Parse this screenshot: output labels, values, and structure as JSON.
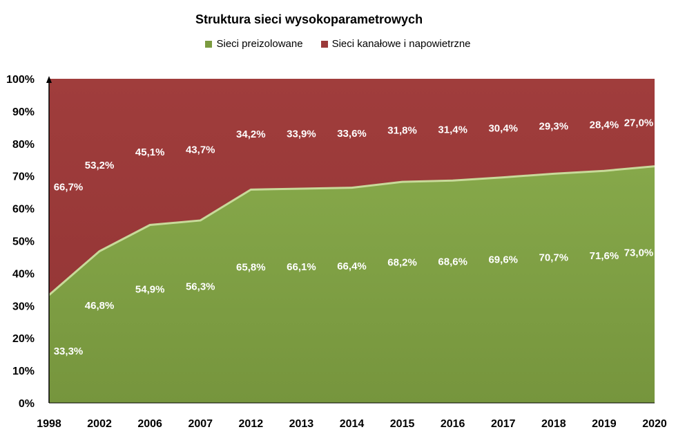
{
  "chart_data": {
    "type": "area",
    "stacked": "percent",
    "title": "Struktura sieci wysokoparametrowych",
    "categories": [
      "1998",
      "2002",
      "2006",
      "2007",
      "2012",
      "2013",
      "2014",
      "2015",
      "2016",
      "2017",
      "2018",
      "2019",
      "2020"
    ],
    "series": [
      {
        "name": "Sieci preizolowane",
        "color": "#7b9b40",
        "values": [
          33.3,
          46.8,
          54.9,
          56.3,
          65.8,
          66.1,
          66.4,
          68.2,
          68.6,
          69.6,
          70.7,
          71.6,
          73.0
        ],
        "labels": [
          "33,3%",
          "46,8%",
          "54,9%",
          "56,3%",
          "65,8%",
          "66,1%",
          "66,4%",
          "68,2%",
          "68,6%",
          "69,6%",
          "70,7%",
          "71,6%",
          "73,0%"
        ]
      },
      {
        "name": "Sieci kanałowe i napowietrzne",
        "color": "#9b3a3a",
        "values": [
          66.7,
          53.2,
          45.1,
          43.7,
          34.2,
          33.9,
          33.6,
          31.8,
          31.4,
          30.4,
          29.3,
          28.4,
          27.0
        ],
        "labels": [
          "66,7%",
          "53,2%",
          "45,1%",
          "43,7%",
          "34,2%",
          "33,9%",
          "33,6%",
          "31,8%",
          "31,4%",
          "30,4%",
          "29,3%",
          "28,4%",
          "27,0%"
        ]
      }
    ],
    "y_ticks": [
      "0%",
      "10%",
      "20%",
      "30%",
      "40%",
      "50%",
      "60%",
      "70%",
      "80%",
      "90%",
      "100%"
    ],
    "ylim": [
      0,
      100
    ],
    "legend_position": "top",
    "grid": false
  }
}
